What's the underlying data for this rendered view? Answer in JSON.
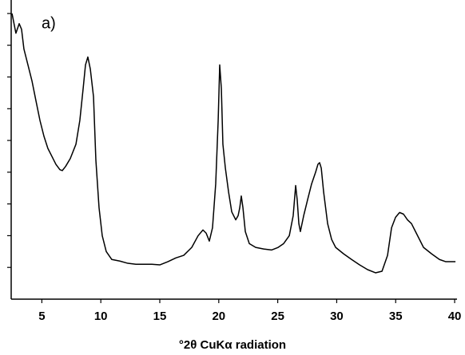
{
  "chart_data": {
    "type": "line",
    "annotation": "a)",
    "x_label": "°2θ CuKα radiation",
    "xlim": [
      2.4,
      40.2
    ],
    "xticks": [
      5,
      10,
      15,
      20,
      25,
      30,
      35,
      40
    ],
    "ylim": [
      0,
      9.4
    ],
    "yticks": [
      1,
      2,
      3,
      4,
      5,
      6,
      7,
      8,
      9
    ],
    "series": [
      {
        "color": "#000000",
        "x": [
          2.47,
          2.8,
          3.08,
          3.28,
          3.48,
          3.82,
          4.16,
          4.5,
          4.84,
          5.18,
          5.51,
          5.85,
          6.19,
          6.53,
          6.73,
          7.01,
          7.41,
          7.89,
          8.22,
          8.5,
          8.7,
          8.9,
          9.11,
          9.38,
          9.58,
          9.85,
          10.12,
          10.46,
          10.93,
          11.61,
          12.29,
          12.97,
          13.64,
          14.32,
          15.0,
          15.68,
          16.36,
          17.03,
          17.71,
          18.25,
          18.66,
          18.93,
          19.2,
          19.47,
          19.74,
          19.95,
          20.08,
          20.22,
          20.35,
          20.56,
          20.83,
          21.1,
          21.44,
          21.64,
          21.78,
          21.91,
          22.05,
          22.25,
          22.59,
          23.13,
          23.81,
          24.49,
          25.03,
          25.5,
          25.98,
          26.31,
          26.52,
          26.65,
          26.79,
          26.92,
          27.2,
          27.53,
          27.87,
          28.21,
          28.41,
          28.55,
          28.69,
          28.89,
          29.23,
          29.57,
          29.91,
          30.58,
          31.26,
          31.94,
          32.62,
          33.29,
          33.84,
          34.31,
          34.65,
          34.99,
          35.33,
          35.66,
          36.0,
          36.34,
          36.68,
          37.36,
          38.04,
          38.71,
          39.25,
          40.07
        ],
        "values": [
          9.0,
          8.38,
          8.68,
          8.5,
          7.88,
          7.38,
          6.88,
          6.25,
          5.63,
          5.13,
          4.75,
          4.5,
          4.25,
          4.08,
          4.05,
          4.18,
          4.43,
          4.88,
          5.63,
          6.63,
          7.38,
          7.63,
          7.25,
          6.38,
          4.38,
          2.88,
          2.0,
          1.5,
          1.25,
          1.2,
          1.13,
          1.1,
          1.1,
          1.1,
          1.08,
          1.18,
          1.3,
          1.38,
          1.63,
          2.0,
          2.18,
          2.08,
          1.83,
          2.25,
          3.63,
          5.63,
          7.38,
          6.63,
          4.88,
          4.13,
          3.38,
          2.75,
          2.5,
          2.63,
          2.88,
          3.25,
          2.88,
          2.13,
          1.75,
          1.63,
          1.58,
          1.55,
          1.63,
          1.75,
          2.0,
          2.63,
          3.58,
          3.13,
          2.38,
          2.13,
          2.63,
          3.13,
          3.63,
          4.0,
          4.25,
          4.3,
          4.13,
          3.38,
          2.38,
          1.88,
          1.63,
          1.43,
          1.25,
          1.08,
          0.93,
          0.83,
          0.88,
          1.38,
          2.25,
          2.58,
          2.73,
          2.68,
          2.5,
          2.38,
          2.13,
          1.63,
          1.43,
          1.25,
          1.18,
          1.18
        ]
      }
    ]
  }
}
